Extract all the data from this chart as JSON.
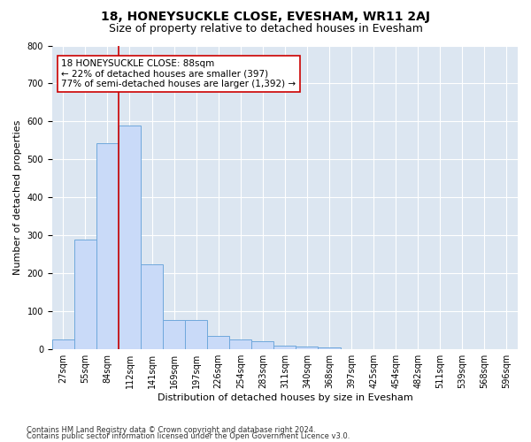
{
  "title": "18, HONEYSUCKLE CLOSE, EVESHAM, WR11 2AJ",
  "subtitle": "Size of property relative to detached houses in Evesham",
  "xlabel": "Distribution of detached houses by size in Evesham",
  "ylabel": "Number of detached properties",
  "footnote1": "Contains HM Land Registry data © Crown copyright and database right 2024.",
  "footnote2": "Contains public sector information licensed under the Open Government Licence v3.0.",
  "categories": [
    "27sqm",
    "55sqm",
    "84sqm",
    "112sqm",
    "141sqm",
    "169sqm",
    "197sqm",
    "226sqm",
    "254sqm",
    "283sqm",
    "311sqm",
    "340sqm",
    "368sqm",
    "397sqm",
    "425sqm",
    "454sqm",
    "482sqm",
    "511sqm",
    "539sqm",
    "568sqm",
    "596sqm"
  ],
  "values": [
    25,
    290,
    543,
    590,
    225,
    78,
    78,
    35,
    25,
    22,
    10,
    8,
    5,
    0,
    0,
    0,
    0,
    0,
    0,
    0,
    0
  ],
  "bar_color": "#c9daf8",
  "bar_edge_color": "#6fa8dc",
  "bar_edge_width": 0.7,
  "vline_x_index": 2,
  "vline_color": "#cc0000",
  "annotation_line1": "18 HONEYSUCKLE CLOSE: 88sqm",
  "annotation_line2": "← 22% of detached houses are smaller (397)",
  "annotation_line3": "77% of semi-detached houses are larger (1,392) →",
  "annotation_box_facecolor": "#ffffff",
  "annotation_box_edgecolor": "#cc0000",
  "ylim": [
    0,
    800
  ],
  "yticks": [
    0,
    100,
    200,
    300,
    400,
    500,
    600,
    700,
    800
  ],
  "bg_color": "#dce6f1",
  "grid_color": "#ffffff",
  "title_fontsize": 10,
  "subtitle_fontsize": 9,
  "axis_label_fontsize": 8,
  "tick_fontsize": 7,
  "annotation_fontsize": 7.5,
  "footnote_fontsize": 6
}
